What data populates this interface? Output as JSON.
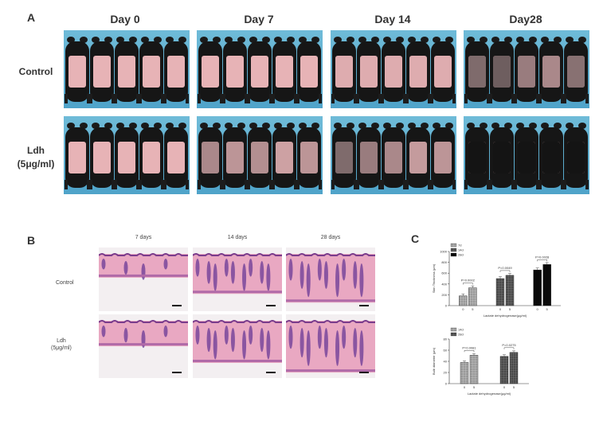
{
  "panel_a": {
    "letter": "A",
    "days": [
      "Day 0",
      "Day 7",
      "Day 14",
      "Day28"
    ],
    "rows": [
      {
        "label_line1": "Control",
        "label_line2": ""
      },
      {
        "label_line1": "Ldh",
        "label_line2": "(5μg/ml)"
      }
    ],
    "hair_regrowth": [
      [
        [
          0,
          0,
          0,
          0,
          0
        ],
        [
          0,
          0,
          0,
          0,
          0
        ],
        [
          0.05,
          0.05,
          0.05,
          0.05,
          0.05
        ],
        [
          0.6,
          0.7,
          0.45,
          0.35,
          0.55
        ]
      ],
      [
        [
          0,
          0,
          0,
          0,
          0
        ],
        [
          0.35,
          0.25,
          0.3,
          0.15,
          0.25
        ],
        [
          0.6,
          0.45,
          0.35,
          0.2,
          0.25
        ],
        [
          1,
          1,
          1,
          1,
          1
        ]
      ]
    ]
  },
  "panel_b": {
    "letter": "B",
    "columns": [
      "7 days",
      "14 days",
      "28 days"
    ],
    "rows": [
      {
        "label_line1": "Control",
        "label_line2": ""
      },
      {
        "label_line1": "Ldh",
        "label_line2": "(5μg/ml)"
      }
    ]
  },
  "panel_c": {
    "letter": "C"
  },
  "chart_data": [
    {
      "type": "bar",
      "title": "",
      "ylabel": "Skin Thickness (μm)",
      "xlabel": "Lactate dehydrogenase(μg/ml)",
      "yticks": [
        "0",
        "200",
        "400",
        "600",
        "800",
        "1000"
      ],
      "ylim": [
        0,
        1000
      ],
      "series_legend": [
        "7d",
        "14d",
        "28d"
      ],
      "groups": [
        {
          "name": "7d",
          "categories": [
            "0",
            "5"
          ],
          "values": [
            180,
            330
          ],
          "pattern": "grid-light"
        },
        {
          "name": "14d",
          "categories": [
            "0",
            "5"
          ],
          "values": [
            500,
            560
          ],
          "pattern": "grid-dark"
        },
        {
          "name": "28d",
          "categories": [
            "0",
            "5"
          ],
          "values": [
            660,
            760
          ],
          "pattern": "black"
        }
      ],
      "annotations": [
        "P=0.0002",
        "P=0.0049",
        "P=0.0028"
      ]
    },
    {
      "type": "bar",
      "title": "",
      "ylabel": "Bulb diameter (μm)",
      "xlabel": "Lactate dehydrogenase(μg/ml)",
      "yticks": [
        "0",
        "20",
        "40",
        "60",
        "80"
      ],
      "ylim": [
        0,
        80
      ],
      "series_legend": [
        "14d",
        "28d"
      ],
      "groups": [
        {
          "name": "14d",
          "categories": [
            "0",
            "5"
          ],
          "values": [
            38,
            51
          ],
          "pattern": "grid-light"
        },
        {
          "name": "28d",
          "categories": [
            "0",
            "5"
          ],
          "values": [
            49,
            56
          ],
          "pattern": "grid-dark"
        }
      ],
      "annotations": [
        "P=0.0081",
        "P=0.0275"
      ]
    }
  ]
}
